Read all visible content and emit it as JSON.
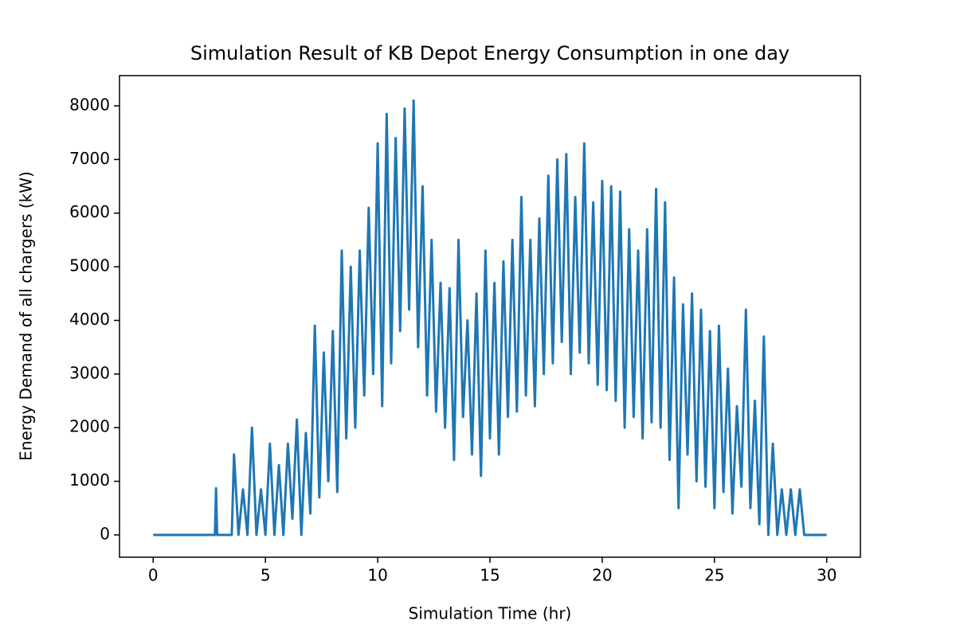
{
  "chart_data": {
    "type": "line",
    "title": "Simulation Result of KB Depot Energy Consumption in one day",
    "xlabel": "Simulation Time (hr)",
    "ylabel": "Energy Demand of all chargers (kW)",
    "xlim": [
      -1.5,
      31.5
    ],
    "ylim": [
      -416,
      8564
    ],
    "xticks": [
      0,
      5,
      10,
      15,
      20,
      25,
      30
    ],
    "yticks": [
      0,
      1000,
      2000,
      3000,
      4000,
      5000,
      6000,
      7000,
      8000
    ],
    "series": [
      {
        "color": "#1f77b4",
        "x": [
          0,
          2.75,
          2.8,
          2.85,
          3.5,
          3.6,
          3.8,
          4.0,
          4.2,
          4.4,
          4.6,
          4.8,
          5.0,
          5.2,
          5.4,
          5.6,
          5.8,
          6.0,
          6.2,
          6.4,
          6.6,
          6.8,
          7.0,
          7.2,
          7.4,
          7.6,
          7.8,
          8.0,
          8.2,
          8.4,
          8.6,
          8.8,
          9.0,
          9.2,
          9.4,
          9.6,
          9.8,
          10.0,
          10.2,
          10.4,
          10.6,
          10.8,
          11.0,
          11.2,
          11.4,
          11.6,
          11.8,
          12.0,
          12.2,
          12.4,
          12.6,
          12.8,
          13.0,
          13.2,
          13.4,
          13.6,
          13.8,
          14.0,
          14.2,
          14.4,
          14.6,
          14.8,
          15.0,
          15.2,
          15.4,
          15.6,
          15.8,
          16.0,
          16.2,
          16.4,
          16.6,
          16.8,
          17.0,
          17.2,
          17.4,
          17.6,
          17.8,
          18.0,
          18.2,
          18.4,
          18.6,
          18.8,
          19.0,
          19.2,
          19.4,
          19.6,
          19.8,
          20.0,
          20.2,
          20.4,
          20.6,
          20.8,
          21.0,
          21.2,
          21.4,
          21.6,
          21.8,
          22.0,
          22.2,
          22.4,
          22.6,
          22.8,
          23.0,
          23.2,
          23.4,
          23.6,
          23.8,
          24.0,
          24.2,
          24.4,
          24.6,
          24.8,
          25.0,
          25.2,
          25.4,
          25.6,
          25.8,
          26.0,
          26.2,
          26.4,
          26.6,
          26.8,
          27.0,
          27.2,
          27.4,
          27.6,
          27.8,
          28.0,
          28.2,
          28.4,
          28.6,
          28.8,
          29.0,
          30.0
        ],
        "values": [
          0,
          0,
          870,
          0,
          0,
          1500,
          0,
          850,
          0,
          2000,
          0,
          850,
          0,
          1700,
          0,
          1300,
          0,
          1700,
          300,
          2150,
          0,
          1900,
          400,
          3900,
          700,
          3400,
          1000,
          3800,
          800,
          5300,
          1800,
          5000,
          2000,
          5300,
          2600,
          6100,
          3000,
          7300,
          2400,
          7850,
          3200,
          7400,
          3800,
          7950,
          4200,
          8100,
          3500,
          6500,
          2600,
          5500,
          2300,
          4700,
          2000,
          4600,
          1400,
          5500,
          2200,
          4000,
          1500,
          4500,
          1100,
          5300,
          1800,
          4700,
          1500,
          5100,
          2200,
          5500,
          2300,
          6300,
          2600,
          5500,
          2400,
          5900,
          3000,
          6700,
          3200,
          7000,
          3600,
          7100,
          3000,
          6300,
          3400,
          7300,
          3200,
          6200,
          2800,
          6600,
          2700,
          6500,
          2500,
          6400,
          2000,
          5700,
          2200,
          5300,
          1800,
          5700,
          2100,
          6450,
          2000,
          6200,
          1400,
          4800,
          500,
          4300,
          1500,
          4500,
          1000,
          4200,
          900,
          3800,
          500,
          3900,
          800,
          3100,
          400,
          2400,
          900,
          4200,
          500,
          2500,
          200,
          3700,
          0,
          1700,
          0,
          850,
          0,
          850,
          0,
          850,
          0,
          0
        ]
      }
    ]
  }
}
